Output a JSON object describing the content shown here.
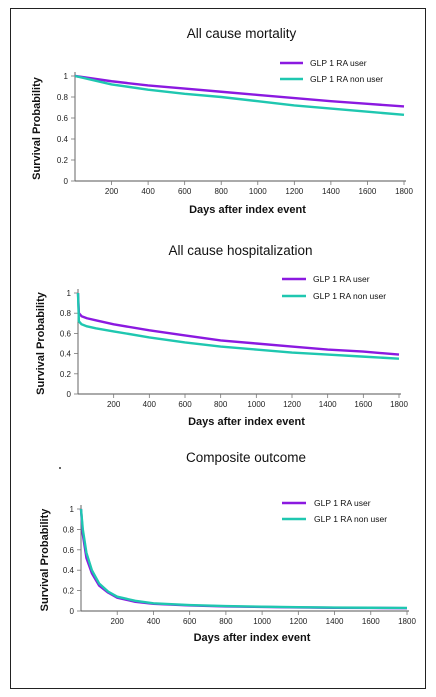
{
  "chart_data": [
    {
      "type": "line",
      "title": "All cause mortality",
      "xlabel": "Days after index event",
      "ylabel": "Survival Probability",
      "xticks": [
        200,
        400,
        600,
        800,
        1000,
        1200,
        1400,
        1600,
        1800
      ],
      "yticks": [
        "0",
        "0.2",
        "0.4",
        "0.6",
        "0.8",
        "1"
      ],
      "xlim": [
        0,
        1800
      ],
      "ylim": [
        0,
        1
      ],
      "legend_position": "top-right",
      "series": [
        {
          "name": "GLP 1 RA user",
          "color": "#8b19e0",
          "x": [
            0,
            200,
            400,
            600,
            800,
            1000,
            1200,
            1400,
            1600,
            1800
          ],
          "y": [
            1.0,
            0.95,
            0.91,
            0.88,
            0.85,
            0.82,
            0.79,
            0.76,
            0.735,
            0.71
          ]
        },
        {
          "name": "GLP 1 RA non user",
          "color": "#1fc7b0",
          "x": [
            0,
            200,
            400,
            600,
            800,
            1000,
            1200,
            1400,
            1600,
            1800
          ],
          "y": [
            1.0,
            0.92,
            0.87,
            0.83,
            0.8,
            0.76,
            0.72,
            0.69,
            0.66,
            0.63
          ]
        }
      ]
    },
    {
      "type": "line",
      "title": "All cause hospitalization",
      "xlabel": "Days after index event",
      "ylabel": "Survival Probability",
      "xticks": [
        200,
        400,
        600,
        800,
        1000,
        1200,
        1400,
        1600,
        1800
      ],
      "yticks": [
        "0",
        "0.2",
        "0.4",
        "0.6",
        "0.8",
        "1"
      ],
      "xlim": [
        0,
        1800
      ],
      "ylim": [
        0,
        1
      ],
      "legend_position": "top-right",
      "series": [
        {
          "name": "GLP 1 RA user",
          "color": "#8b19e0",
          "x": [
            0,
            5,
            20,
            50,
            100,
            200,
            400,
            600,
            800,
            1000,
            1200,
            1400,
            1600,
            1800
          ],
          "y": [
            1.0,
            0.8,
            0.77,
            0.75,
            0.73,
            0.69,
            0.63,
            0.58,
            0.53,
            0.5,
            0.47,
            0.44,
            0.42,
            0.39
          ]
        },
        {
          "name": "GLP 1 RA non user",
          "color": "#1fc7b0",
          "x": [
            0,
            5,
            20,
            50,
            100,
            200,
            400,
            600,
            800,
            1000,
            1200,
            1400,
            1600,
            1800
          ],
          "y": [
            1.0,
            0.72,
            0.69,
            0.67,
            0.65,
            0.62,
            0.56,
            0.51,
            0.47,
            0.44,
            0.41,
            0.39,
            0.37,
            0.35
          ]
        }
      ]
    },
    {
      "type": "line",
      "title": "Composite outcome",
      "xlabel": "Days after index event",
      "ylabel": "Survival Probability",
      "xticks": [
        200,
        400,
        600,
        800,
        1000,
        1200,
        1400,
        1600,
        1800
      ],
      "yticks": [
        "0",
        "0.2",
        "0.4",
        "0.6",
        "0.8",
        "1"
      ],
      "xlim": [
        0,
        1800
      ],
      "ylim": [
        0,
        1
      ],
      "legend_position": "top-right",
      "series": [
        {
          "name": "GLP 1 RA user",
          "color": "#8b19e0",
          "x": [
            0,
            10,
            30,
            60,
            100,
            150,
            200,
            300,
            400,
            600,
            800,
            1000,
            1200,
            1400,
            1600,
            1800
          ],
          "y": [
            1.0,
            0.75,
            0.52,
            0.37,
            0.25,
            0.18,
            0.13,
            0.09,
            0.07,
            0.055,
            0.045,
            0.04,
            0.035,
            0.032,
            0.03,
            0.028
          ]
        },
        {
          "name": "GLP 1 RA non user",
          "color": "#1fc7b0",
          "x": [
            0,
            10,
            30,
            60,
            100,
            150,
            200,
            300,
            400,
            600,
            800,
            1000,
            1200,
            1400,
            1600,
            1800
          ],
          "y": [
            1.0,
            0.8,
            0.57,
            0.4,
            0.27,
            0.19,
            0.14,
            0.1,
            0.075,
            0.058,
            0.048,
            0.042,
            0.037,
            0.034,
            0.032,
            0.03
          ]
        }
      ]
    }
  ]
}
